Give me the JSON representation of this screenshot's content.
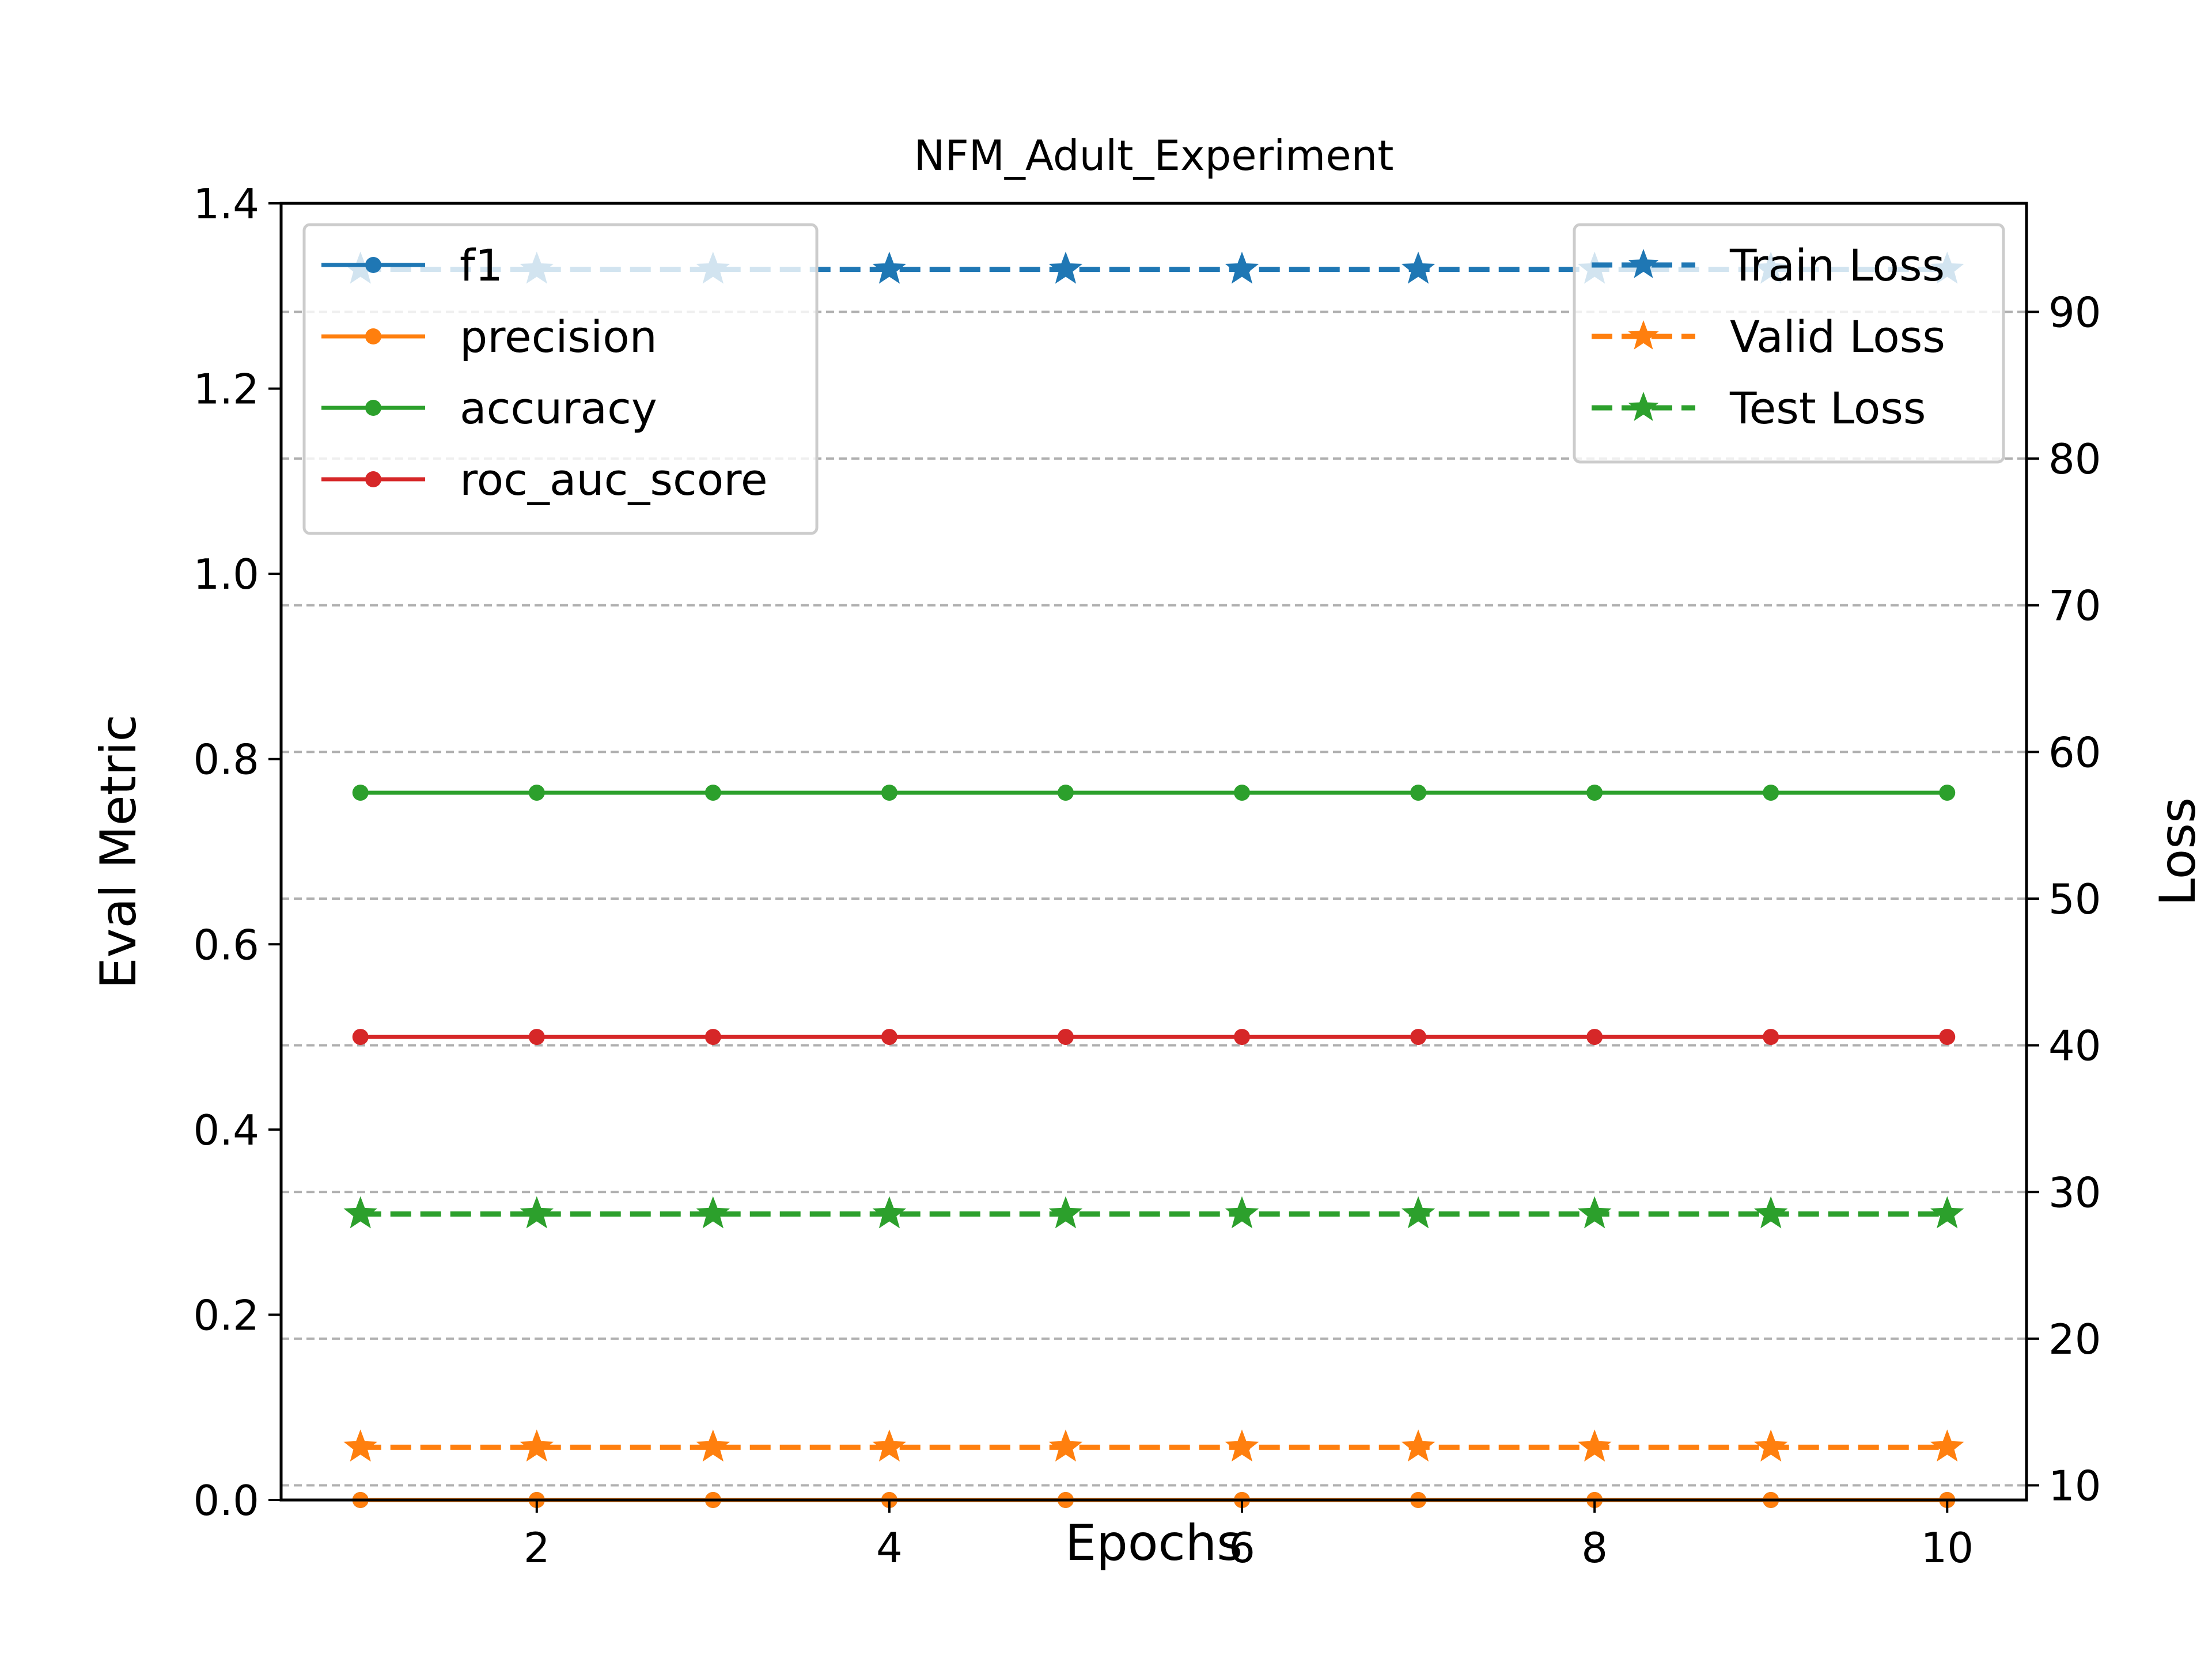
{
  "chart_data": {
    "type": "line",
    "title": "NFM_Adult_Experiment",
    "xlabel": "Epochs",
    "ylabel": "Eval Metric",
    "y2label": "Loss",
    "x": [
      1,
      2,
      3,
      4,
      5,
      6,
      7,
      8,
      9,
      10
    ],
    "xlim": [
      0.55,
      10.45
    ],
    "ylim": [
      0,
      1.4
    ],
    "y2lim": [
      9,
      97.4
    ],
    "xticks": [
      2,
      4,
      6,
      8,
      10
    ],
    "yticks": [
      0.0,
      0.2,
      0.4,
      0.6,
      0.8,
      1.0,
      1.2,
      1.4
    ],
    "y2ticks": [
      10,
      20,
      30,
      40,
      50,
      60,
      70,
      80,
      90
    ],
    "xtick_labels": [
      "2",
      "4",
      "6",
      "8",
      "10"
    ],
    "ytick_labels": [
      "0.0",
      "0.2",
      "0.4",
      "0.6",
      "0.8",
      "1.0",
      "1.2",
      "1.4"
    ],
    "y2tick_labels": [
      "10",
      "20",
      "30",
      "40",
      "50",
      "60",
      "70",
      "80",
      "90"
    ],
    "grid": "right-axis horizontal dashed",
    "legend_left_position": "upper-left",
    "legend_right_position": "upper-right",
    "series_left": [
      {
        "name": "f1",
        "color": "#1f77b4",
        "values": [
          0,
          0,
          0,
          0,
          0,
          0,
          0,
          0,
          0,
          0
        ],
        "marker": "dot",
        "linestyle": "solid"
      },
      {
        "name": "precision",
        "color": "#ff7f0e",
        "values": [
          0,
          0,
          0,
          0,
          0,
          0,
          0,
          0,
          0,
          0
        ],
        "marker": "dot",
        "linestyle": "solid"
      },
      {
        "name": "accuracy",
        "color": "#2ca02c",
        "values": [
          0.7637,
          0.7637,
          0.7637,
          0.7637,
          0.7637,
          0.7637,
          0.7637,
          0.7637,
          0.7637,
          0.7637
        ],
        "marker": "dot",
        "linestyle": "solid"
      },
      {
        "name": "roc_auc_score",
        "color": "#d62728",
        "values": [
          0.5,
          0.5,
          0.5,
          0.5,
          0.5,
          0.5,
          0.5,
          0.5,
          0.5,
          0.5
        ],
        "marker": "dot",
        "linestyle": "solid"
      }
    ],
    "series_right": [
      {
        "name": "Train Loss",
        "color": "#1f77b4",
        "values": [
          92.9,
          92.9,
          92.9,
          92.9,
          92.9,
          92.9,
          92.9,
          92.9,
          92.9,
          92.9
        ],
        "marker": "star",
        "linestyle": "dashed"
      },
      {
        "name": "Valid Loss",
        "color": "#ff7f0e",
        "values": [
          12.6,
          12.6,
          12.6,
          12.6,
          12.6,
          12.6,
          12.6,
          12.6,
          12.6,
          12.6
        ],
        "marker": "star",
        "linestyle": "dashed"
      },
      {
        "name": "Test Loss",
        "color": "#2ca02c",
        "values": [
          28.5,
          28.5,
          28.5,
          28.5,
          28.5,
          28.5,
          28.5,
          28.5,
          28.5,
          28.5
        ],
        "marker": "star",
        "linestyle": "dashed"
      }
    ]
  }
}
